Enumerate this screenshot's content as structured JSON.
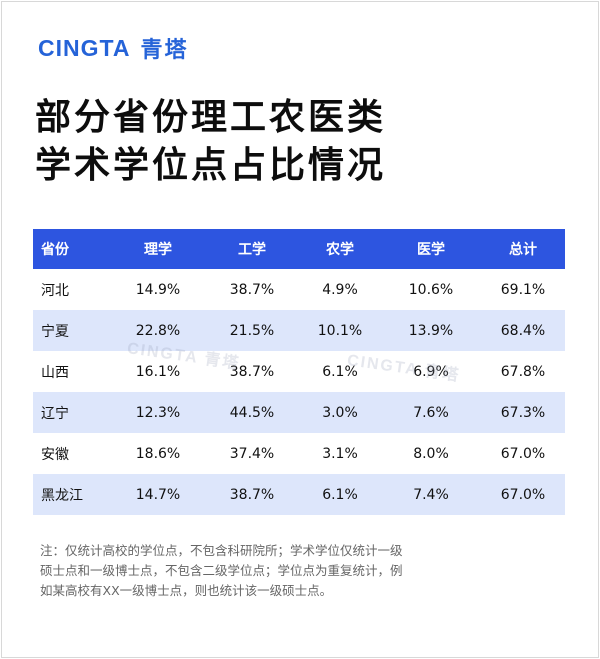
{
  "brand": {
    "latin": "CINGTA",
    "cjk": "青塔"
  },
  "title": {
    "line1": "部分省份理工农医类",
    "line2": "学术学位点占比情况"
  },
  "table": {
    "headers": [
      "省份",
      "理学",
      "工学",
      "农学",
      "医学",
      "总计"
    ],
    "rows": [
      [
        "河北",
        "14.9%",
        "38.7%",
        "4.9%",
        "10.6%",
        "69.1%"
      ],
      [
        "宁夏",
        "22.8%",
        "21.5%",
        "10.1%",
        "13.9%",
        "68.4%"
      ],
      [
        "山西",
        "16.1%",
        "38.7%",
        "6.1%",
        "6.9%",
        "67.8%"
      ],
      [
        "辽宁",
        "12.3%",
        "44.5%",
        "3.0%",
        "7.6%",
        "67.3%"
      ],
      [
        "安徽",
        "18.6%",
        "37.4%",
        "3.1%",
        "8.0%",
        "67.0%"
      ],
      [
        "黑龙江",
        "14.7%",
        "38.7%",
        "6.1%",
        "7.4%",
        "67.0%"
      ]
    ]
  },
  "watermark": "CINGTA 青塔",
  "note": {
    "line1": "注：仅统计高校的学位点，不包含科研院所；学术学位仅统计一级",
    "line2": "硕士点和一级博士点，不包含二级学位点；学位点为重复统计，例",
    "line3": "如某高校有XX一级博士点，则也统计该一级硕士点。"
  },
  "colors": {
    "brand": "#2563d8",
    "header_bg": "#2d55e0",
    "row_shade": "#dde6fb"
  }
}
